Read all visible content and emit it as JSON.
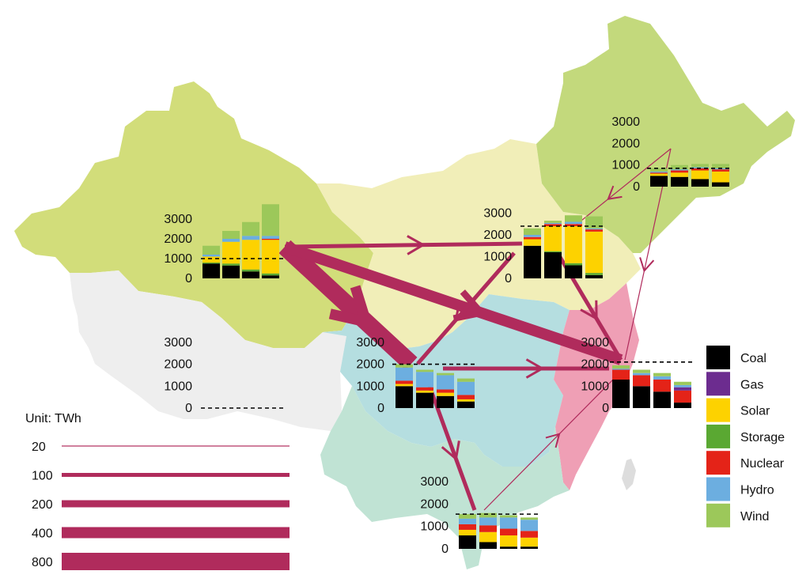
{
  "colors": {
    "Coal": "#000000",
    "Gas": "#6c2c8f",
    "Solar": "#fdd200",
    "Storage": "#5aa832",
    "Nuclear": "#e42318",
    "Hydro": "#6caee0",
    "Wind": "#9cc85a",
    "flow": "#b02b5c"
  },
  "region_colors": {
    "northwest": "#d2dd7a",
    "north": "#f1eeb8",
    "northeast": "#c3d97c",
    "central": "#b5dee0",
    "east": "#ef9fb5",
    "south": "#c0e3d4",
    "taiwan": "#dddddd"
  },
  "legend": {
    "items": [
      {
        "label": "Coal",
        "key": "Coal"
      },
      {
        "label": "Gas",
        "key": "Gas"
      },
      {
        "label": "Solar",
        "key": "Solar"
      },
      {
        "label": "Storage",
        "key": "Storage"
      },
      {
        "label": "Nuclear",
        "key": "Nuclear"
      },
      {
        "label": "Hydro",
        "key": "Hydro"
      },
      {
        "label": "Wind",
        "key": "Wind"
      }
    ]
  },
  "scale": {
    "unit_label": "Unit: TWh",
    "items": [
      "20",
      "100",
      "200",
      "400",
      "800"
    ],
    "values": [
      20,
      100,
      200,
      400,
      800
    ]
  },
  "chart_data": {
    "type": "bar",
    "stacking": "stacked",
    "unit": "TWh",
    "ylim": [
      0,
      3000
    ],
    "yticks": [
      "0",
      "1000",
      "2000",
      "3000"
    ],
    "layers": [
      "Coal",
      "Storage",
      "Solar",
      "Nuclear",
      "Gas",
      "Hydro",
      "Wind"
    ],
    "regions": [
      {
        "id": "northwest",
        "demand": 1000,
        "bars": [
          {
            "Coal": 750,
            "Storage": 50,
            "Solar": 300,
            "Nuclear": 0,
            "Gas": 0,
            "Hydro": 100,
            "Wind": 450
          },
          {
            "Coal": 650,
            "Storage": 100,
            "Solar": 1100,
            "Nuclear": 0,
            "Gas": 0,
            "Hydro": 150,
            "Wind": 400
          },
          {
            "Coal": 350,
            "Storage": 100,
            "Solar": 1500,
            "Nuclear": 0,
            "Gas": 0,
            "Hydro": 200,
            "Wind": 700
          },
          {
            "Coal": 150,
            "Storage": 100,
            "Solar": 1700,
            "Nuclear": 50,
            "Gas": 0,
            "Hydro": 150,
            "Wind": 1600
          }
        ]
      },
      {
        "id": "north",
        "demand": 2400,
        "bars": [
          {
            "Coal": 1500,
            "Storage": 0,
            "Solar": 300,
            "Nuclear": 100,
            "Gas": 0,
            "Hydro": 100,
            "Wind": 300
          },
          {
            "Coal": 1200,
            "Storage": 50,
            "Solar": 1150,
            "Nuclear": 100,
            "Gas": 0,
            "Hydro": 50,
            "Wind": 100
          },
          {
            "Coal": 600,
            "Storage": 100,
            "Solar": 1700,
            "Nuclear": 100,
            "Gas": 0,
            "Hydro": 100,
            "Wind": 300
          },
          {
            "Coal": 150,
            "Storage": 100,
            "Solar": 1900,
            "Nuclear": 100,
            "Gas": 0,
            "Hydro": 50,
            "Wind": 550
          }
        ]
      },
      {
        "id": "northeast",
        "demand": 850,
        "bars": [
          {
            "Coal": 500,
            "Storage": 0,
            "Solar": 100,
            "Nuclear": 50,
            "Gas": 0,
            "Hydro": 50,
            "Wind": 150
          },
          {
            "Coal": 450,
            "Storage": 0,
            "Solar": 200,
            "Nuclear": 100,
            "Gas": 0,
            "Hydro": 50,
            "Wind": 200
          },
          {
            "Coal": 350,
            "Storage": 0,
            "Solar": 400,
            "Nuclear": 100,
            "Gas": 0,
            "Hydro": 50,
            "Wind": 150
          },
          {
            "Coal": 200,
            "Storage": 0,
            "Solar": 500,
            "Nuclear": 100,
            "Gas": 0,
            "Hydro": 50,
            "Wind": 200
          }
        ]
      },
      {
        "id": "central",
        "demand": 2000,
        "bars": [
          {
            "Coal": 1000,
            "Storage": 0,
            "Solar": 100,
            "Nuclear": 150,
            "Gas": 0,
            "Hydro": 600,
            "Wind": 150
          },
          {
            "Coal": 700,
            "Storage": 0,
            "Solar": 100,
            "Nuclear": 150,
            "Gas": 0,
            "Hydro": 700,
            "Wind": 100
          },
          {
            "Coal": 550,
            "Storage": 0,
            "Solar": 150,
            "Nuclear": 150,
            "Gas": 0,
            "Hydro": 650,
            "Wind": 100
          },
          {
            "Coal": 300,
            "Storage": 0,
            "Solar": 100,
            "Nuclear": 200,
            "Gas": 0,
            "Hydro": 600,
            "Wind": 150
          }
        ]
      },
      {
        "id": "east",
        "demand": 2100,
        "bars": [
          {
            "Coal": 1300,
            "Storage": 0,
            "Solar": 0,
            "Nuclear": 450,
            "Gas": 0,
            "Hydro": 50,
            "Wind": 150
          },
          {
            "Coal": 1000,
            "Storage": 0,
            "Solar": 0,
            "Nuclear": 500,
            "Gas": 0,
            "Hydro": 100,
            "Wind": 150
          },
          {
            "Coal": 750,
            "Storage": 0,
            "Solar": 0,
            "Nuclear": 550,
            "Gas": 0,
            "Hydro": 150,
            "Wind": 150
          },
          {
            "Coal": 250,
            "Storage": 0,
            "Solar": 0,
            "Nuclear": 550,
            "Gas": 150,
            "Hydro": 100,
            "Wind": 150
          }
        ]
      },
      {
        "id": "south",
        "demand": 1550,
        "bars": [
          {
            "Coal": 600,
            "Storage": 0,
            "Solar": 250,
            "Nuclear": 250,
            "Gas": 0,
            "Hydro": 250,
            "Wind": 200
          },
          {
            "Coal": 300,
            "Storage": 0,
            "Solar": 450,
            "Nuclear": 300,
            "Gas": 0,
            "Hydro": 350,
            "Wind": 200
          },
          {
            "Coal": 100,
            "Storage": 0,
            "Solar": 500,
            "Nuclear": 300,
            "Gas": 0,
            "Hydro": 500,
            "Wind": 100
          },
          {
            "Coal": 100,
            "Storage": 0,
            "Solar": 400,
            "Nuclear": 300,
            "Gas": 0,
            "Hydro": 500,
            "Wind": 100
          }
        ]
      },
      {
        "id": "southwest",
        "demand": 0,
        "bars": []
      }
    ],
    "flows": [
      {
        "from": "northwest",
        "to": "north",
        "twh": 100
      },
      {
        "from": "northwest",
        "to": "central",
        "twh": 800
      },
      {
        "from": "northwest",
        "to": "east",
        "twh": 400
      },
      {
        "from": "north",
        "to": "central",
        "twh": 100
      },
      {
        "from": "north",
        "to": "east",
        "twh": 100
      },
      {
        "from": "northeast",
        "to": "north",
        "twh": 20
      },
      {
        "from": "northeast",
        "to": "east",
        "twh": 20
      },
      {
        "from": "central",
        "to": "east",
        "twh": 100
      },
      {
        "from": "central",
        "to": "south",
        "twh": 100
      },
      {
        "from": "south",
        "to": "east",
        "twh": 20
      }
    ]
  }
}
